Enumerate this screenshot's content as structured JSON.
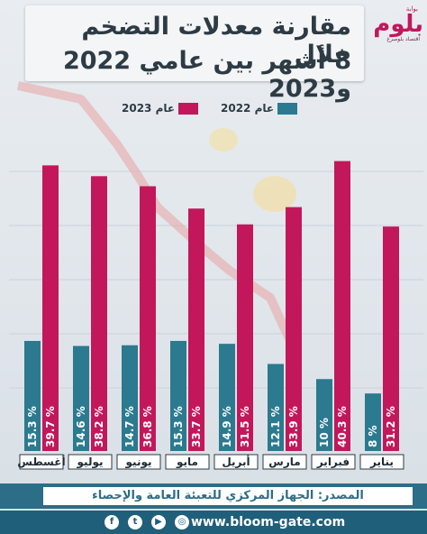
{
  "title": {
    "line1": "مقارنة معدلات التضخم خلال",
    "line2": "8 أشهر بين عامي 2022 و2023"
  },
  "logo": {
    "main": "بلوم",
    "gate": "بوابة",
    "sub": "اقتصاد بلومبرغ"
  },
  "chart_data": {
    "type": "bar",
    "categories": [
      "يناير",
      "فبراير",
      "مارس",
      "أبريل",
      "مايو",
      "يونيو",
      "يوليو",
      "أغسطس"
    ],
    "series": [
      {
        "name": "عام 2022",
        "values": [
          8,
          10,
          12.1,
          14.9,
          15.3,
          14.7,
          14.6,
          15.3
        ],
        "labels": [
          "8 %",
          "10 %",
          "12.1 %",
          "14.9 %",
          "15.3 %",
          "14.7 %",
          "14.6 %",
          "15.3 %"
        ],
        "color": "#2b7a8f"
      },
      {
        "name": "عام 2023",
        "values": [
          31.2,
          40.3,
          33.9,
          31.5,
          33.7,
          36.8,
          38.2,
          39.7
        ],
        "labels": [
          "31.2 %",
          "40.3 %",
          "33.9 %",
          "31.5 %",
          "33.7 %",
          "36.8 %",
          "38.2 %",
          "39.7 %"
        ],
        "color": "#c2185b"
      }
    ],
    "legend_position": "top"
  },
  "source": "المصدر: الجهاز المركزي للتعبئة العامة والإحصاء",
  "footer": {
    "url": "www.bloom-gate.com",
    "social_icons": [
      "instagram-icon",
      "youtube-icon",
      "twitter-icon",
      "facebook-icon"
    ]
  }
}
